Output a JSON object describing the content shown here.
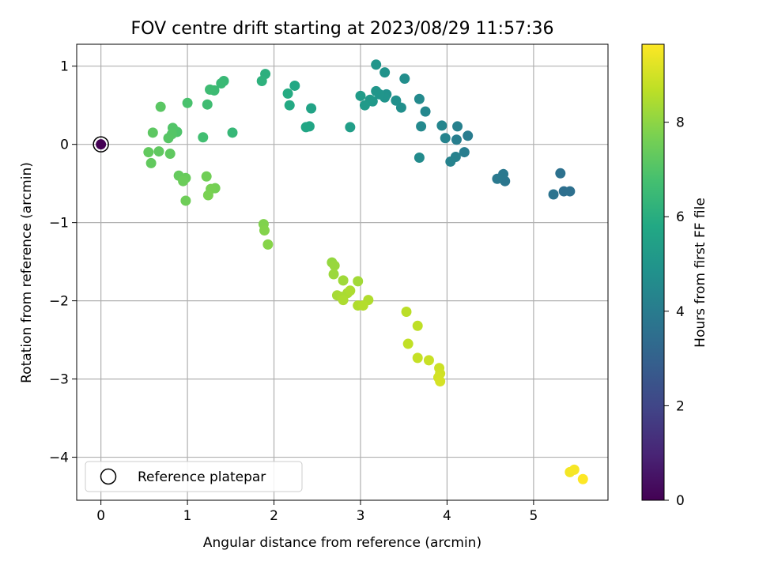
{
  "chart_data": {
    "type": "scatter",
    "title": "FOV centre drift starting at 2023/08/29 11:57:36",
    "xlabel": "Angular distance from reference (arcmin)",
    "ylabel": "Rotation from reference (arcmin)",
    "xlim": [
      -0.28,
      5.86
    ],
    "ylim": [
      -4.55,
      1.28
    ],
    "xticks": [
      0,
      1,
      2,
      3,
      4,
      5
    ],
    "yticks": [
      -4,
      -3,
      -2,
      -1,
      0,
      1
    ],
    "xtick_labels": [
      "0",
      "1",
      "2",
      "3",
      "4",
      "5"
    ],
    "ytick_labels": [
      "−4",
      "−3",
      "−2",
      "−1",
      "0",
      "1"
    ],
    "grid": true,
    "legend": {
      "placement": "lower-left",
      "entries": [
        "Reference platepar"
      ]
    },
    "reference_point": {
      "x": 0,
      "y": 0
    },
    "colorbar": {
      "label": "Hours from first FF file",
      "colormap": "viridis",
      "range": [
        0,
        9.65
      ],
      "ticks": [
        0,
        2,
        4,
        6,
        8
      ],
      "tick_labels": [
        "0",
        "2",
        "4",
        "6",
        "8"
      ]
    },
    "points": [
      {
        "x": 0.0,
        "y": 0.0,
        "c": 0.0
      },
      {
        "x": 5.35,
        "y": -0.6,
        "c": 3.5
      },
      {
        "x": 5.42,
        "y": -0.6,
        "c": 3.55
      },
      {
        "x": 5.31,
        "y": -0.37,
        "c": 3.6
      },
      {
        "x": 5.23,
        "y": -0.64,
        "c": 3.65
      },
      {
        "x": 4.67,
        "y": -0.47,
        "c": 3.8
      },
      {
        "x": 4.65,
        "y": -0.38,
        "c": 3.85
      },
      {
        "x": 4.58,
        "y": -0.44,
        "c": 3.9
      },
      {
        "x": 4.24,
        "y": 0.11,
        "c": 4.0
      },
      {
        "x": 4.2,
        "y": -0.1,
        "c": 4.05
      },
      {
        "x": 4.11,
        "y": 0.06,
        "c": 4.1
      },
      {
        "x": 4.12,
        "y": 0.23,
        "c": 4.15
      },
      {
        "x": 4.1,
        "y": -0.16,
        "c": 4.2
      },
      {
        "x": 4.04,
        "y": -0.22,
        "c": 4.25
      },
      {
        "x": 3.98,
        "y": 0.08,
        "c": 4.3
      },
      {
        "x": 3.94,
        "y": 0.24,
        "c": 4.35
      },
      {
        "x": 3.75,
        "y": 0.42,
        "c": 4.45
      },
      {
        "x": 3.7,
        "y": 0.23,
        "c": 4.5
      },
      {
        "x": 3.68,
        "y": 0.58,
        "c": 4.55
      },
      {
        "x": 3.68,
        "y": -0.17,
        "c": 4.6
      },
      {
        "x": 3.51,
        "y": 0.84,
        "c": 4.7
      },
      {
        "x": 3.47,
        "y": 0.47,
        "c": 4.75
      },
      {
        "x": 3.41,
        "y": 0.56,
        "c": 4.8
      },
      {
        "x": 3.3,
        "y": 0.64,
        "c": 4.85
      },
      {
        "x": 3.28,
        "y": 0.92,
        "c": 4.9
      },
      {
        "x": 3.28,
        "y": 0.6,
        "c": 4.95
      },
      {
        "x": 3.22,
        "y": 0.64,
        "c": 5.0
      },
      {
        "x": 3.18,
        "y": 1.02,
        "c": 5.0
      },
      {
        "x": 3.18,
        "y": 0.68,
        "c": 5.05
      },
      {
        "x": 3.14,
        "y": 0.55,
        "c": 5.1
      },
      {
        "x": 3.11,
        "y": 0.57,
        "c": 5.15
      },
      {
        "x": 3.05,
        "y": 0.5,
        "c": 5.2
      },
      {
        "x": 3.0,
        "y": 0.62,
        "c": 5.25
      },
      {
        "x": 2.88,
        "y": 0.22,
        "c": 5.35
      },
      {
        "x": 2.43,
        "y": 0.46,
        "c": 5.6
      },
      {
        "x": 2.41,
        "y": 0.23,
        "c": 5.65
      },
      {
        "x": 2.37,
        "y": 0.22,
        "c": 5.7
      },
      {
        "x": 2.24,
        "y": 0.75,
        "c": 5.8
      },
      {
        "x": 2.18,
        "y": 0.5,
        "c": 5.85
      },
      {
        "x": 2.16,
        "y": 0.65,
        "c": 5.9
      },
      {
        "x": 1.9,
        "y": 0.9,
        "c": 6.1
      },
      {
        "x": 1.86,
        "y": 0.81,
        "c": 6.15
      },
      {
        "x": 1.52,
        "y": 0.15,
        "c": 6.4
      },
      {
        "x": 1.42,
        "y": 0.81,
        "c": 6.45
      },
      {
        "x": 1.39,
        "y": 0.78,
        "c": 6.5
      },
      {
        "x": 1.31,
        "y": 0.69,
        "c": 6.55
      },
      {
        "x": 1.26,
        "y": 0.7,
        "c": 6.6
      },
      {
        "x": 1.23,
        "y": 0.51,
        "c": 6.65
      },
      {
        "x": 1.18,
        "y": 0.09,
        "c": 6.7
      },
      {
        "x": 1.0,
        "y": 0.53,
        "c": 6.85
      },
      {
        "x": 0.88,
        "y": 0.16,
        "c": 6.95
      },
      {
        "x": 0.83,
        "y": 0.21,
        "c": 7.0
      },
      {
        "x": 0.82,
        "y": 0.13,
        "c": 7.05
      },
      {
        "x": 0.78,
        "y": 0.08,
        "c": 7.1
      },
      {
        "x": 0.69,
        "y": 0.48,
        "c": 7.15
      },
      {
        "x": 0.6,
        "y": 0.15,
        "c": 7.2
      },
      {
        "x": 0.8,
        "y": -0.12,
        "c": 7.25
      },
      {
        "x": 0.67,
        "y": -0.09,
        "c": 7.25
      },
      {
        "x": 0.55,
        "y": -0.1,
        "c": 7.3
      },
      {
        "x": 0.58,
        "y": -0.24,
        "c": 7.3
      },
      {
        "x": 0.9,
        "y": -0.4,
        "c": 7.35
      },
      {
        "x": 0.98,
        "y": -0.43,
        "c": 7.4
      },
      {
        "x": 0.95,
        "y": -0.47,
        "c": 7.45
      },
      {
        "x": 0.98,
        "y": -0.72,
        "c": 7.5
      },
      {
        "x": 1.22,
        "y": -0.41,
        "c": 7.55
      },
      {
        "x": 1.32,
        "y": -0.56,
        "c": 7.6
      },
      {
        "x": 1.27,
        "y": -0.57,
        "c": 7.65
      },
      {
        "x": 1.24,
        "y": -0.65,
        "c": 7.7
      },
      {
        "x": 1.88,
        "y": -1.02,
        "c": 7.8
      },
      {
        "x": 1.89,
        "y": -1.1,
        "c": 7.85
      },
      {
        "x": 1.93,
        "y": -1.28,
        "c": 7.9
      },
      {
        "x": 2.67,
        "y": -1.51,
        "c": 8.1
      },
      {
        "x": 2.7,
        "y": -1.55,
        "c": 8.15
      },
      {
        "x": 2.69,
        "y": -1.66,
        "c": 8.2
      },
      {
        "x": 2.8,
        "y": -1.74,
        "c": 8.25
      },
      {
        "x": 2.97,
        "y": -1.75,
        "c": 8.3
      },
      {
        "x": 2.73,
        "y": -1.93,
        "c": 8.35
      },
      {
        "x": 2.78,
        "y": -1.95,
        "c": 8.4
      },
      {
        "x": 2.85,
        "y": -1.9,
        "c": 8.4
      },
      {
        "x": 2.88,
        "y": -1.87,
        "c": 8.45
      },
      {
        "x": 2.8,
        "y": -1.99,
        "c": 8.45
      },
      {
        "x": 3.09,
        "y": -1.99,
        "c": 8.5
      },
      {
        "x": 2.97,
        "y": -2.06,
        "c": 8.5
      },
      {
        "x": 3.03,
        "y": -2.06,
        "c": 8.55
      },
      {
        "x": 3.53,
        "y": -2.14,
        "c": 8.65
      },
      {
        "x": 3.66,
        "y": -2.32,
        "c": 8.7
      },
      {
        "x": 3.55,
        "y": -2.55,
        "c": 8.75
      },
      {
        "x": 3.66,
        "y": -2.73,
        "c": 8.8
      },
      {
        "x": 3.79,
        "y": -2.76,
        "c": 8.85
      },
      {
        "x": 3.91,
        "y": -2.86,
        "c": 8.9
      },
      {
        "x": 3.92,
        "y": -2.93,
        "c": 8.95
      },
      {
        "x": 3.9,
        "y": -2.98,
        "c": 9.0
      },
      {
        "x": 3.92,
        "y": -3.03,
        "c": 9.05
      },
      {
        "x": 5.42,
        "y": -4.19,
        "c": 9.5
      },
      {
        "x": 5.47,
        "y": -4.16,
        "c": 9.55
      },
      {
        "x": 5.57,
        "y": -4.28,
        "c": 9.65
      }
    ]
  }
}
